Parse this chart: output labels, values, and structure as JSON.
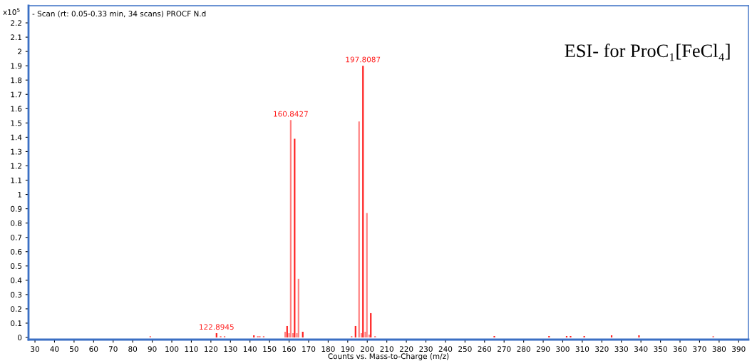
{
  "chart_data": {
    "type": "bar",
    "title": "- Scan (rt: 0.05-0.33 min, 34 scans) PROCF N.d",
    "ylabel": "x10$^{5}$",
    "xlabel": "Counts vs. Mass-to-Charge (m/z)",
    "annotations": [
      "ESI- for ProC₁[FeCl₄]",
      {
        "text": "122.8945",
        "x": 122.8945,
        "y": 0.03
      },
      {
        "text": "160.8427",
        "x": 160.8427,
        "y": 1.52
      },
      {
        "text": "197.8087",
        "x": 197.8087,
        "y": 1.9
      }
    ],
    "x": [
      89.0,
      122.8945,
      125.0,
      127.0,
      142.0,
      144.0,
      145.0,
      147.0,
      158.0,
      159.0,
      160.0,
      160.8427,
      162.0,
      162.84,
      164.0,
      164.84,
      167.0,
      192.0,
      194.0,
      195.81,
      197.0,
      197.8087,
      199.0,
      199.81,
      201.0,
      201.81,
      204.0,
      265.0,
      293.0,
      302.0,
      304.0,
      311.0,
      325.0,
      339.0,
      377.0
    ],
    "values": [
      0.01,
      0.03,
      0.01,
      0.01,
      0.015,
      0.01,
      0.01,
      0.01,
      0.04,
      0.08,
      0.03,
      1.52,
      0.03,
      1.39,
      0.03,
      0.41,
      0.04,
      0.01,
      0.08,
      1.51,
      0.03,
      1.9,
      0.04,
      0.87,
      0.02,
      0.17,
      0.01,
      0.01,
      0.01,
      0.01,
      0.01,
      0.01,
      0.015,
      0.015,
      0.01
    ],
    "colors": [
      "#ff8080",
      "#ff2020",
      "#ff8080",
      "#ff8080",
      "#ff2020",
      "#ff8080",
      "#ff8080",
      "#ff8080",
      "#ff8080",
      "#ff2020",
      "#ff8080",
      "#ff8080",
      "#ff8080",
      "#ff2020",
      "#ff8080",
      "#ff8080",
      "#ff2020",
      "#ff8080",
      "#ff2020",
      "#ff8080",
      "#ff8080",
      "#ff2020",
      "#ff8080",
      "#ff8080",
      "#ff8080",
      "#ff2020",
      "#ff8080",
      "#ff2020",
      "#ff2020",
      "#ff2020",
      "#ff2020",
      "#ff2020",
      "#ff2020",
      "#ff2020",
      "#ff8080"
    ],
    "xlim": [
      26.7,
      395
    ],
    "ylim": [
      -0.015,
      2.32
    ],
    "xticks": [
      30,
      40,
      50,
      60,
      70,
      80,
      90,
      100,
      110,
      120,
      130,
      140,
      150,
      160,
      170,
      180,
      190,
      200,
      210,
      220,
      230,
      240,
      250,
      260,
      270,
      280,
      290,
      300,
      310,
      320,
      330,
      340,
      350,
      360,
      370,
      380,
      390
    ],
    "yticks": [
      0,
      0.1,
      0.2,
      0.3,
      0.4,
      0.5,
      0.6,
      0.7,
      0.8,
      0.9,
      1,
      1.1,
      1.2,
      1.3,
      1.4,
      1.5,
      1.6,
      1.7,
      1.8,
      1.9,
      2,
      2.1,
      2.2
    ],
    "grid": false,
    "legend": false
  }
}
